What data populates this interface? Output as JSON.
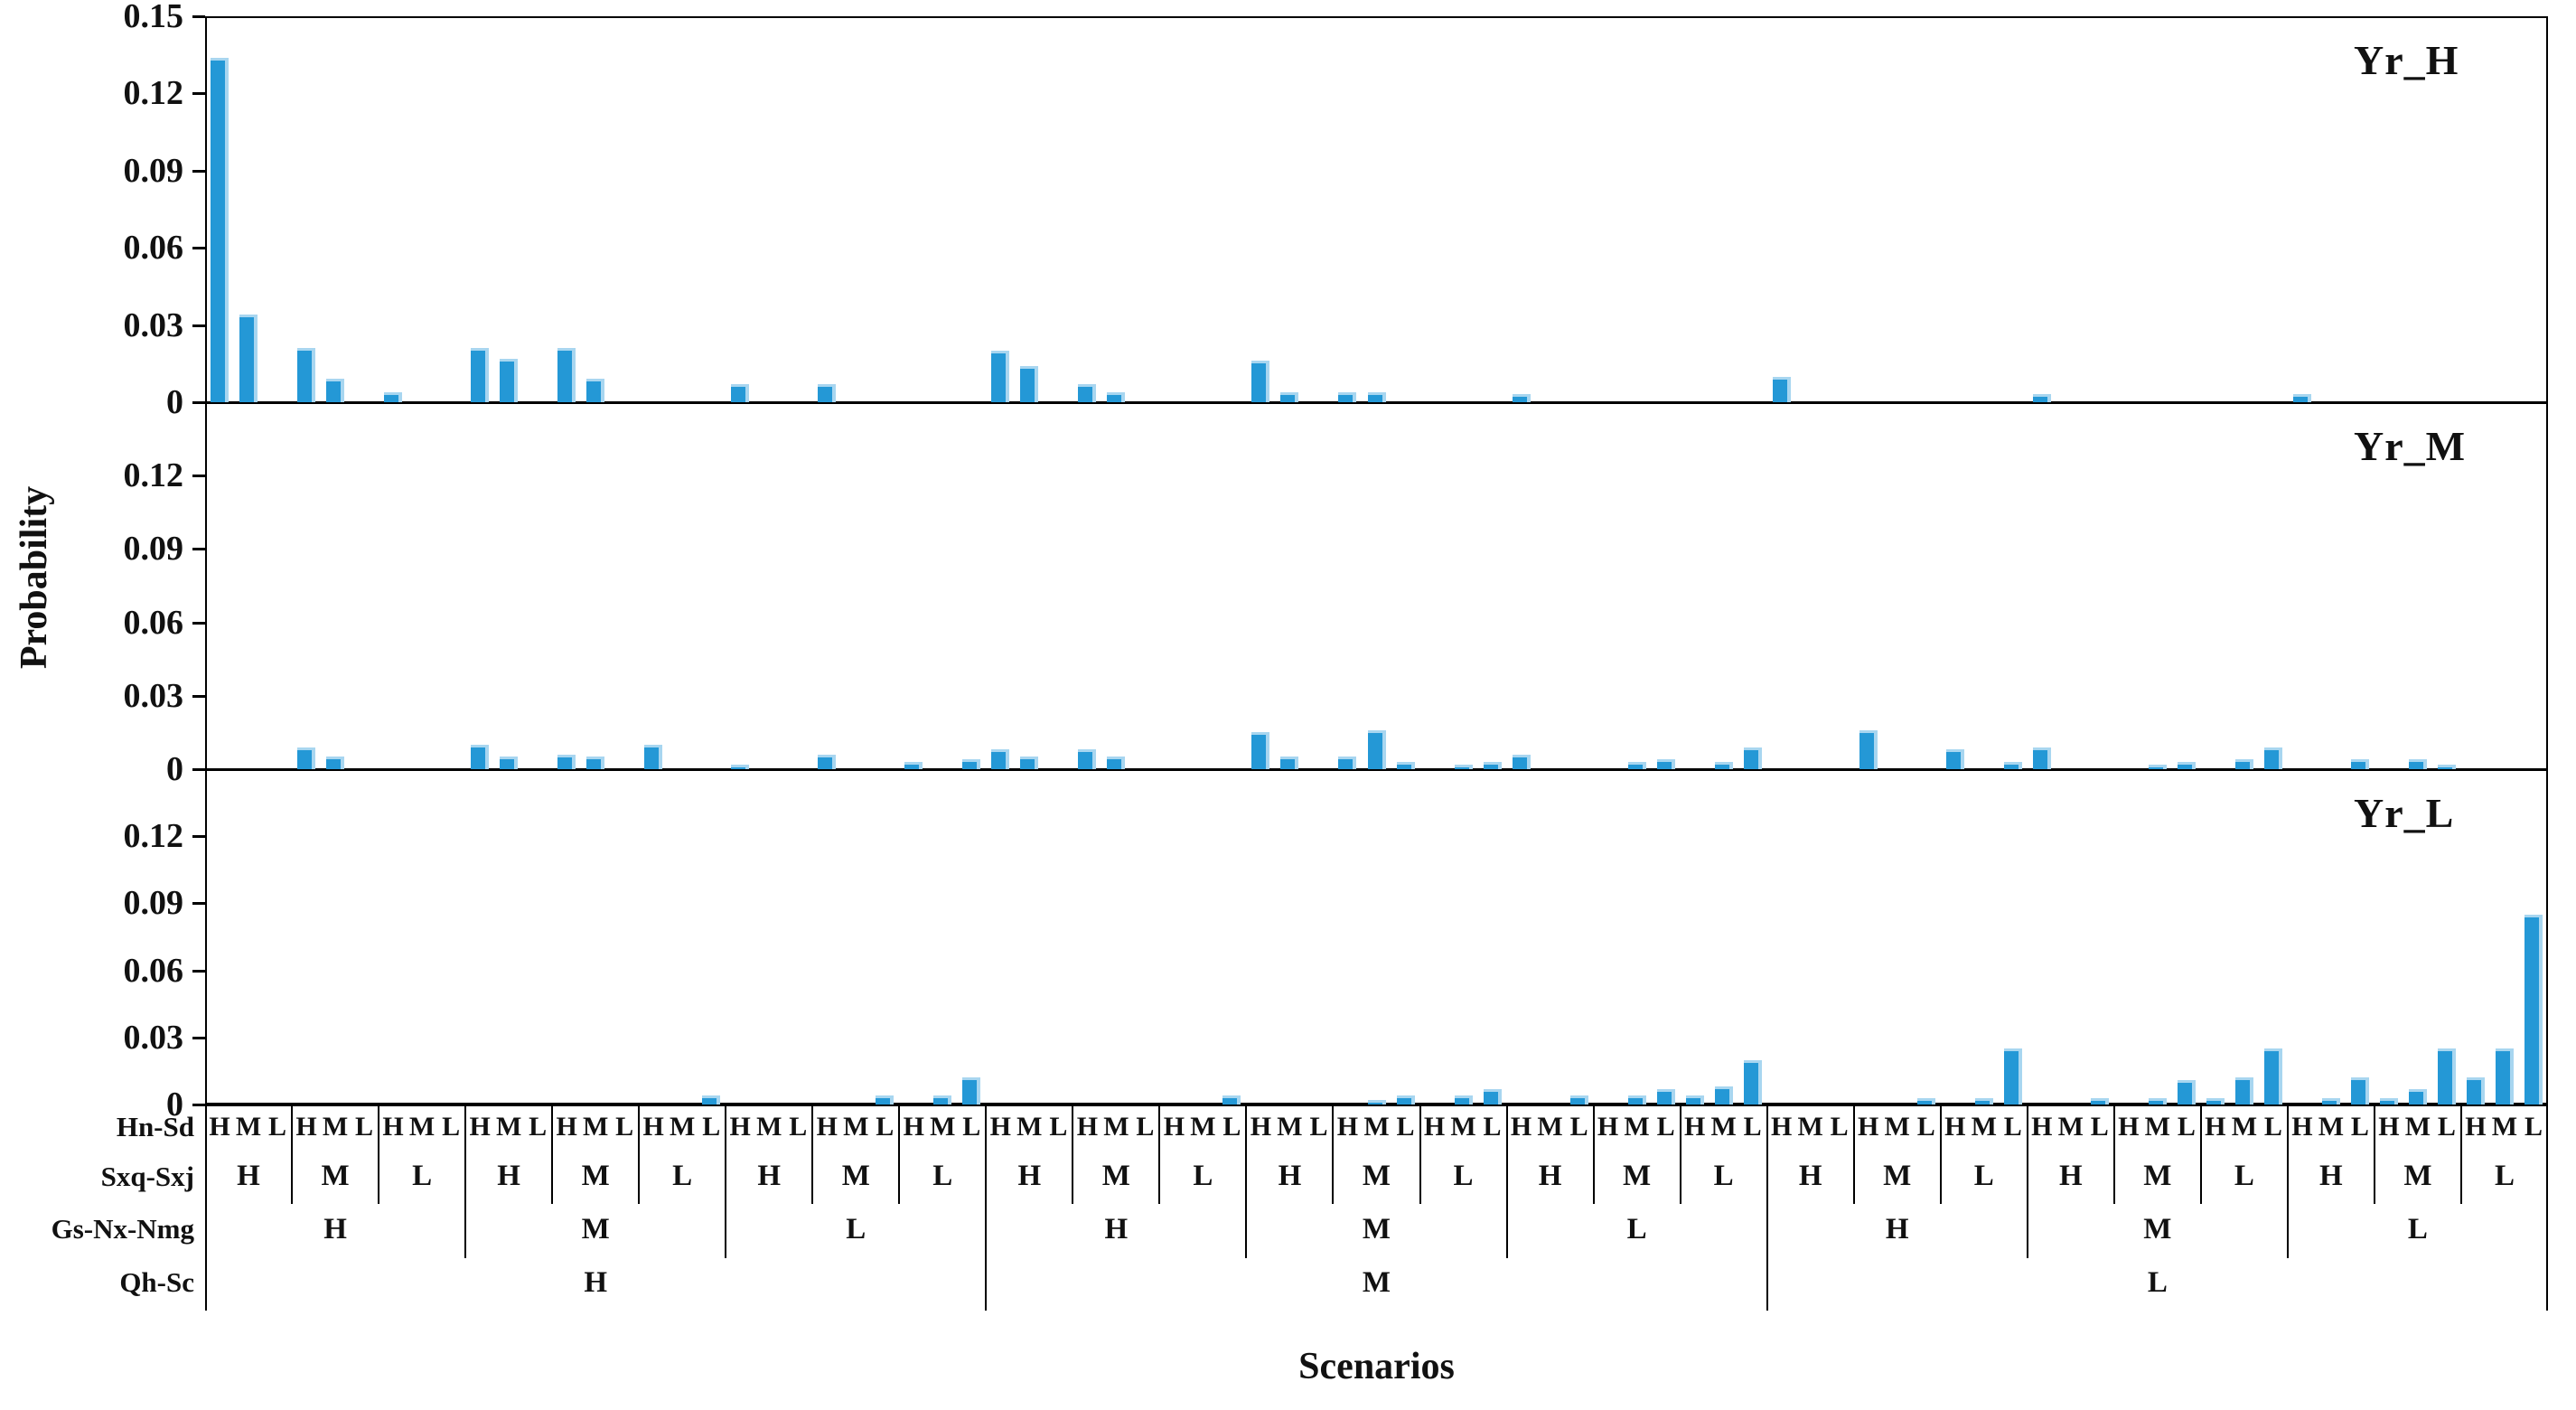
{
  "chart_data": {
    "type": "bar",
    "title": "",
    "xlabel": "Scenarios",
    "ylabel": "Probability",
    "bar_color": "#2498d6",
    "bar_highlight_color": "#a8d6f0",
    "axis_color": "#000000",
    "grid": false,
    "legend_position": "none",
    "n_scenarios": 81,
    "panels": [
      {
        "label": "Yr_H",
        "ylim": [
          0,
          0.15
        ],
        "yticks": [
          "0.15",
          "0.12",
          "0.09",
          "0.06",
          "0.03",
          "0"
        ],
        "ytick_values": [
          0.15,
          0.12,
          0.09,
          0.06,
          0.03,
          0
        ],
        "values": [
          0.134,
          0.034,
          0,
          0.021,
          0.009,
          0,
          0.004,
          0,
          0,
          0.021,
          0.017,
          0,
          0.021,
          0.009,
          0,
          0,
          0,
          0,
          0.007,
          0,
          0,
          0.007,
          0,
          0,
          0,
          0,
          0,
          0.02,
          0.014,
          0,
          0.007,
          0.004,
          0,
          0,
          0,
          0,
          0.016,
          0.004,
          0,
          0.004,
          0.004,
          0,
          0,
          0,
          0,
          0.003,
          0,
          0,
          0,
          0,
          0,
          0,
          0,
          0,
          0.01,
          0,
          0,
          0,
          0,
          0,
          0,
          0,
          0,
          0.003,
          0,
          0,
          0,
          0,
          0,
          0,
          0,
          0,
          0.003,
          0,
          0,
          0,
          0,
          0,
          0,
          0,
          0
        ]
      },
      {
        "label": "Yr_M",
        "ylim": [
          0,
          0.15
        ],
        "yticks": [
          "0.12",
          "0.09",
          "0.06",
          "0.03",
          "0"
        ],
        "ytick_values": [
          0.12,
          0.09,
          0.06,
          0.03,
          0
        ],
        "values": [
          0,
          0,
          0,
          0.009,
          0.005,
          0,
          0,
          0,
          0,
          0.01,
          0.005,
          0,
          0.006,
          0.005,
          0,
          0.01,
          0,
          0,
          0.002,
          0,
          0,
          0.006,
          0,
          0,
          0.003,
          0,
          0.004,
          0.008,
          0.005,
          0,
          0.008,
          0.005,
          0,
          0,
          0,
          0,
          0.015,
          0.005,
          0,
          0.005,
          0.016,
          0.003,
          0,
          0.002,
          0.003,
          0.006,
          0,
          0,
          0,
          0.003,
          0.004,
          0,
          0.003,
          0.009,
          0,
          0,
          0,
          0.016,
          0,
          0,
          0.008,
          0,
          0.003,
          0.009,
          0,
          0,
          0,
          0.002,
          0.003,
          0,
          0.004,
          0.009,
          0,
          0,
          0.004,
          0,
          0.004,
          0.002,
          0,
          0,
          0
        ]
      },
      {
        "label": "Yr_L",
        "ylim": [
          0,
          0.15
        ],
        "yticks": [
          "0.12",
          "0.09",
          "0.06",
          "0.03",
          "0"
        ],
        "ytick_values": [
          0.12,
          0.09,
          0.06,
          0.03,
          0
        ],
        "values": [
          0,
          0,
          0,
          0,
          0,
          0,
          0,
          0,
          0,
          0,
          0,
          0,
          0,
          0,
          0,
          0,
          0,
          0.004,
          0,
          0,
          0,
          0,
          0,
          0.004,
          0,
          0.004,
          0.012,
          0,
          0,
          0,
          0,
          0,
          0,
          0,
          0,
          0.004,
          0,
          0,
          0,
          0,
          0.002,
          0.004,
          0,
          0.004,
          0.007,
          0,
          0,
          0.004,
          0,
          0.004,
          0.007,
          0.004,
          0.008,
          0.02,
          0,
          0,
          0,
          0,
          0,
          0.003,
          0,
          0.003,
          0.025,
          0,
          0,
          0.003,
          0,
          0.003,
          0.011,
          0.003,
          0.012,
          0.025,
          0,
          0.003,
          0.012,
          0.003,
          0.007,
          0.025,
          0.012,
          0.025,
          0.085
        ]
      }
    ],
    "x_axis_levels": [
      {
        "label": "Hn-Sd",
        "group_size": 1,
        "letters": [
          "H",
          "M",
          "L",
          "H",
          "M",
          "L",
          "H",
          "M",
          "L",
          "H",
          "M",
          "L",
          "H",
          "M",
          "L",
          "H",
          "M",
          "L",
          "H",
          "M",
          "L",
          "H",
          "M",
          "L",
          "H",
          "M",
          "L",
          "H",
          "M",
          "L",
          "H",
          "M",
          "L",
          "H",
          "M",
          "L",
          "H",
          "M",
          "L",
          "H",
          "M",
          "L",
          "H",
          "M",
          "L",
          "H",
          "M",
          "L",
          "H",
          "M",
          "L",
          "H",
          "M",
          "L",
          "H",
          "M",
          "L",
          "H",
          "M",
          "L",
          "H",
          "M",
          "L",
          "H",
          "M",
          "L",
          "H",
          "M",
          "L",
          "H",
          "M",
          "L",
          "H",
          "M",
          "L",
          "H",
          "M",
          "L",
          "H",
          "M",
          "L"
        ]
      },
      {
        "label": "Sxq-Sxj",
        "group_size": 3,
        "letters": [
          "H",
          "M",
          "L",
          "H",
          "M",
          "L",
          "H",
          "M",
          "L",
          "H",
          "M",
          "L",
          "H",
          "M",
          "L",
          "H",
          "M",
          "L",
          "H",
          "M",
          "L",
          "H",
          "M",
          "L",
          "H",
          "M",
          "L"
        ]
      },
      {
        "label": "Gs-Nx-Nmg",
        "group_size": 9,
        "letters": [
          "H",
          "M",
          "L",
          "H",
          "M",
          "L",
          "H",
          "M",
          "L"
        ]
      },
      {
        "label": "Qh-Sc",
        "group_size": 27,
        "letters": [
          "H",
          "M",
          "L"
        ]
      }
    ]
  }
}
